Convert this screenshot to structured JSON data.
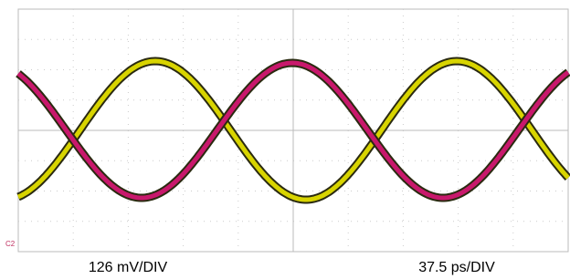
{
  "screen": {
    "channel_marker": "C2"
  },
  "footer": {
    "vertical_scale": "126 mV/DIV",
    "horizontal_scale": "37.5 ps/DIV"
  }
}
